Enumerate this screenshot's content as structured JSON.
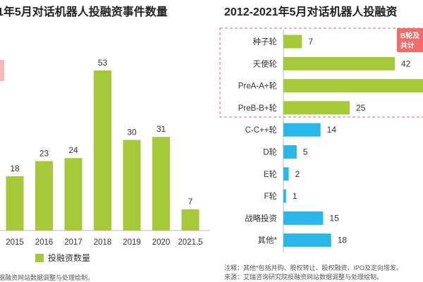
{
  "chart_data": [
    {
      "type": "bar",
      "title": "1年5月对话机器人投融资事件数量",
      "categories": [
        "2015",
        "2016",
        "2017",
        "2018",
        "2019",
        "2020",
        "2021.5"
      ],
      "series": [
        {
          "name": "投融资数量",
          "values": [
            18,
            23,
            24,
            53,
            30,
            31,
            7
          ],
          "color": "#a6c93a"
        }
      ],
      "ylim": [
        0,
        60
      ],
      "legend": "bottom",
      "grid": false
    },
    {
      "type": "bar",
      "orientation": "horizontal",
      "title": "2012-2021年5月对话机器人投融资",
      "categories": [
        "种子轮",
        "天使轮",
        "PreA-A+轮",
        "PreB-B+轮",
        "C-C++轮",
        "D轮",
        "E轮",
        "F轮",
        "战略投资",
        "其他*"
      ],
      "values": [
        7,
        42,
        55,
        25,
        14,
        5,
        2,
        1,
        15,
        18
      ],
      "bar_colors": [
        "#a6c93a",
        "#a6c93a",
        "#a6c93a",
        "#a6c93a",
        "#29b6e8",
        "#29b6e8",
        "#29b6e8",
        "#29b6e8",
        "#29b6e8",
        "#29b6e8"
      ],
      "value_labels": [
        "7",
        "42",
        "",
        "25",
        "14",
        "5",
        "2",
        "1",
        "15",
        "18"
      ],
      "xlim": [
        0,
        60
      ],
      "grid": false,
      "callout": {
        "line1": "B轮及",
        "line2": "共计",
        "color": "#f26b6b"
      }
    }
  ],
  "footer": {
    "left_note": "据融资网站数据调整与处理绘制。",
    "right_note_1": "注释：其他*包括并购、股权转让、股权融资、IPO及定向增发。",
    "right_note_2": "来源：艾瑞咨询研究院投融资网站数据调整与处理绘制。"
  },
  "colors": {
    "green": "#a6c93a",
    "blue": "#29b6e8",
    "callout": "#f26b6b",
    "dashed_box": "#e06666"
  }
}
